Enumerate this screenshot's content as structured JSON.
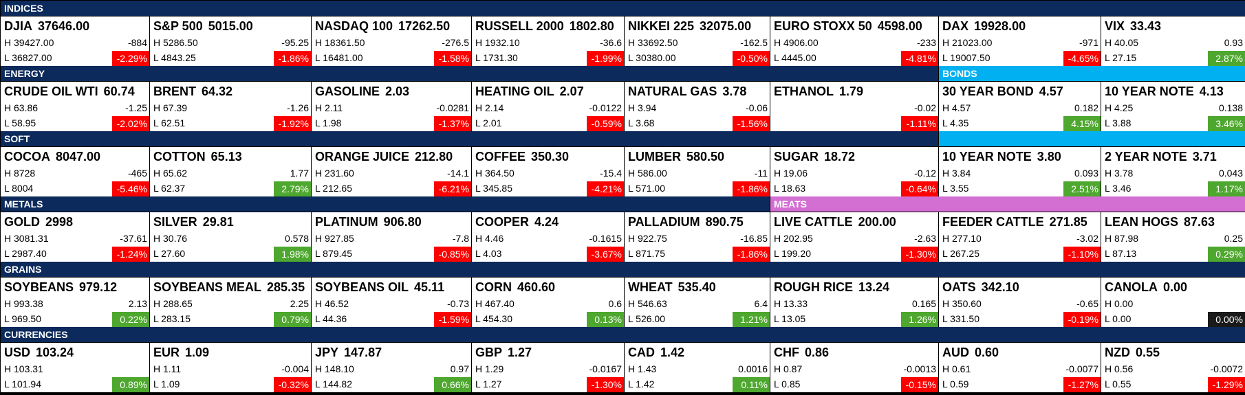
{
  "rows": [
    {
      "groups": [
        {
          "label": "INDICES",
          "color": "#0c2a5b",
          "tiles": [
            {
              "name": "DJIA",
              "price": "37646.00",
              "high": "H 39427.00",
              "change": "-884",
              "low": "L 36827.00",
              "pct": "-2.29%"
            },
            {
              "name": "S&P 500",
              "price": "5015.00",
              "high": "H 5286.50",
              "change": "-95.25",
              "low": "L 4843.25",
              "pct": "-1.86%"
            },
            {
              "name": "NASDAQ 100",
              "price": "17262.50",
              "high": "H 18361.50",
              "change": "-276.5",
              "low": "L 16481.00",
              "pct": "-1.58%"
            },
            {
              "name": "RUSSELL 2000",
              "price": "1802.80",
              "high": "H 1932.10",
              "change": "-36.6",
              "low": "L 1731.30",
              "pct": "-1.99%"
            },
            {
              "name": "NIKKEI 225",
              "price": "32075.00",
              "high": "H 33692.50",
              "change": "-162.5",
              "low": "L 30380.00",
              "pct": "-0.50%"
            },
            {
              "name": "EURO STOXX 50",
              "price": "4598.00",
              "high": "H 4906.00",
              "change": "-233",
              "low": "L 4445.00",
              "pct": "-4.81%"
            },
            {
              "name": "DAX",
              "price": "19928.00",
              "high": "H 21023.00",
              "change": "-971",
              "low": "L 19007.50",
              "pct": "-4.65%"
            },
            {
              "name": "VIX",
              "price": "33.43",
              "high": "H 40.05",
              "change": "0.93",
              "low": "L 27.15",
              "pct": "2.87%"
            }
          ]
        }
      ]
    },
    {
      "groups": [
        {
          "label": "ENERGY",
          "color": "#0c2a5b",
          "tiles": [
            {
              "name": "CRUDE OIL WTI",
              "price": "60.74",
              "high": "H 63.86",
              "change": "-1.25",
              "low": "L 58.95",
              "pct": "-2.02%"
            },
            {
              "name": "BRENT",
              "price": "64.32",
              "high": "H 67.39",
              "change": "-1.26",
              "low": "L 62.51",
              "pct": "-1.92%"
            },
            {
              "name": "GASOLINE",
              "price": "2.03",
              "high": "H 2.11",
              "change": "-0.0281",
              "low": "L 1.98",
              "pct": "-1.37%"
            },
            {
              "name": "HEATING OIL",
              "price": "2.07",
              "high": "H 2.14",
              "change": "-0.0122",
              "low": "L 2.01",
              "pct": "-0.59%"
            },
            {
              "name": "NATURAL GAS",
              "price": "3.78",
              "high": "H 3.94",
              "change": "-0.06",
              "low": "L 3.68",
              "pct": "-1.56%"
            },
            {
              "name": "ETHANOL",
              "price": "1.79",
              "change": "-0.02",
              "pct": "-1.11%"
            }
          ]
        },
        {
          "label": "BONDS",
          "color": "#00b0f0",
          "tiles": [
            {
              "name": "30 YEAR BOND",
              "price": "4.57",
              "high": "H 4.57",
              "change": "0.182",
              "low": "L 4.35",
              "pct": "4.15%"
            },
            {
              "name": "10 YEAR NOTE",
              "price": "4.13",
              "high": "H 4.25",
              "change": "0.138",
              "low": "L 3.88",
              "pct": "3.46%"
            }
          ]
        }
      ]
    },
    {
      "groups": [
        {
          "label": "SOFT",
          "color": "#0c2a5b",
          "tiles": [
            {
              "name": "COCOA",
              "price": "8047.00",
              "high": "H 8728",
              "change": "-465",
              "low": "L 8004",
              "pct": "-5.46%"
            },
            {
              "name": "COTTON",
              "price": "65.13",
              "high": "H 65.62",
              "change": "1.77",
              "low": "L 62.37",
              "pct": "2.79%"
            },
            {
              "name": "ORANGE JUICE",
              "price": "212.80",
              "high": "H 231.60",
              "change": "-14.1",
              "low": "L 212.65",
              "pct": "-6.21%"
            },
            {
              "name": "COFFEE",
              "price": "350.30",
              "high": "H 364.50",
              "change": "-15.4",
              "low": "L 345.85",
              "pct": "-4.21%"
            },
            {
              "name": "LUMBER",
              "price": "580.50",
              "high": "H 586.00",
              "change": "-11",
              "low": "L 571.00",
              "pct": "-1.86%"
            },
            {
              "name": "SUGAR",
              "price": "18.72",
              "high": "H 19.06",
              "change": "-0.12",
              "low": "L 18.63",
              "pct": "-0.64%"
            }
          ]
        },
        {
          "color": "#00b0f0",
          "tiles": [
            {
              "name": "10 YEAR NOTE",
              "price": "3.80",
              "high": "H 3.84",
              "change": "0.093",
              "low": "L 3.55",
              "pct": "2.51%"
            },
            {
              "name": "2 YEAR NOTE",
              "price": "3.71",
              "high": "H 3.78",
              "change": "0.043",
              "low": "L 3.46",
              "pct": "1.17%"
            }
          ]
        }
      ]
    },
    {
      "groups": [
        {
          "label": "METALS",
          "color": "#0c2a5b",
          "tiles": [
            {
              "name": "GOLD",
              "price": "2998",
              "high": "H 3081.31",
              "change": "-37.61",
              "low": "L 2987.40",
              "pct": "-1.24%"
            },
            {
              "name": "SILVER",
              "price": "29.81",
              "high": "H 30.76",
              "change": "0.578",
              "low": "L 27.60",
              "pct": "1.98%"
            },
            {
              "name": "PLATINUM",
              "price": "906.80",
              "high": "H 927.85",
              "change": "-7.8",
              "low": "L 879.45",
              "pct": "-0.85%"
            },
            {
              "name": "COOPER",
              "price": "4.24",
              "high": "H 4.46",
              "change": "-0.1615",
              "low": "L 4.03",
              "pct": "-3.67%"
            },
            {
              "name": "PALLADIUM",
              "price": "890.75",
              "high": "H 922.75",
              "change": "-16.85",
              "low": "L 871.75",
              "pct": "-1.86%"
            }
          ]
        },
        {
          "label": "MEATS",
          "color": "#d36fd3",
          "tiles": [
            {
              "name": "LIVE CATTLE",
              "price": "200.00",
              "high": "H 202.95",
              "change": "-2.63",
              "low": "L 199.20",
              "pct": "-1.30%"
            },
            {
              "name": "FEEDER CATTLE",
              "price": "271.85",
              "high": "H 277.10",
              "change": "-3.02",
              "low": "L 267.25",
              "pct": "-1.10%"
            },
            {
              "name": "LEAN HOGS",
              "price": "87.63",
              "high": "H 87.98",
              "change": "0.25",
              "low": "L 87.13",
              "pct": "0.29%"
            }
          ]
        }
      ]
    },
    {
      "groups": [
        {
          "label": "GRAINS",
          "color": "#0c2a5b",
          "tiles": [
            {
              "name": "SOYBEANS",
              "price": "979.12",
              "high": "H 993.38",
              "change": "2.13",
              "low": "L 969.50",
              "pct": "0.22%"
            },
            {
              "name": "SOYBEANS MEAL",
              "price": "285.35",
              "high": "H 288.65",
              "change": "2.25",
              "low": "L 283.15",
              "pct": "0.79%"
            },
            {
              "name": "SOYBEANS OIL",
              "price": "45.11",
              "high": "H 46.52",
              "change": "-0.73",
              "low": "L 44.36",
              "pct": "-1.59%"
            },
            {
              "name": "CORN",
              "price": "460.60",
              "high": "H 467.40",
              "change": "0.6",
              "low": "L 454.30",
              "pct": "0.13%"
            },
            {
              "name": "WHEAT",
              "price": "535.40",
              "high": "H 546.63",
              "change": "6.4",
              "low": "L 526.00",
              "pct": "1.21%"
            },
            {
              "name": "ROUGH RICE",
              "price": "13.24",
              "high": "H 13.33",
              "change": "0.165",
              "low": "L 13.05",
              "pct": "1.26%"
            },
            {
              "name": "OATS",
              "price": "342.10",
              "high": "H 350.60",
              "change": "-0.65",
              "low": "L 331.50",
              "pct": "-0.19%"
            },
            {
              "name": "CANOLA",
              "price": "0.00",
              "high": "H 0.00",
              "low": "L 0.00",
              "pct": "0.00%"
            }
          ]
        }
      ]
    },
    {
      "groups": [
        {
          "label": "CURRENCIES",
          "color": "#0c2a5b",
          "tiles": [
            {
              "name": "USD",
              "price": "103.24",
              "high": "H 103.31",
              "low": "L 101.94",
              "pct": "0.89%"
            },
            {
              "name": "EUR",
              "price": "1.09",
              "high": "H 1.11",
              "change": "-0.004",
              "low": "L 1.09",
              "pct": "-0.32%"
            },
            {
              "name": "JPY",
              "price": "147.87",
              "high": "H 148.10",
              "change": "0.97",
              "low": "L 144.82",
              "pct": "0.66%"
            },
            {
              "name": "GBP",
              "price": "1.27",
              "high": "H 1.29",
              "change": "-0.0167",
              "low": "L 1.27",
              "pct": "-1.30%"
            },
            {
              "name": "CAD",
              "price": "1.42",
              "high": "H 1.43",
              "change": "0.0016",
              "low": "L 1.42",
              "pct": "0.11%"
            },
            {
              "name": "CHF",
              "price": "0.86",
              "high": "H 0.87",
              "change": "-0.0013",
              "low": "L 0.85",
              "pct": "-0.15%"
            },
            {
              "name": "AUD",
              "price": "0.60",
              "high": "H 0.61",
              "change": "-0.0077",
              "low": "L 0.59",
              "pct": "-1.27%"
            },
            {
              "name": "NZD",
              "price": "0.55",
              "high": "H 0.56",
              "change": "-0.0072",
              "low": "L 0.55",
              "pct": "-1.29%"
            }
          ]
        }
      ]
    }
  ]
}
